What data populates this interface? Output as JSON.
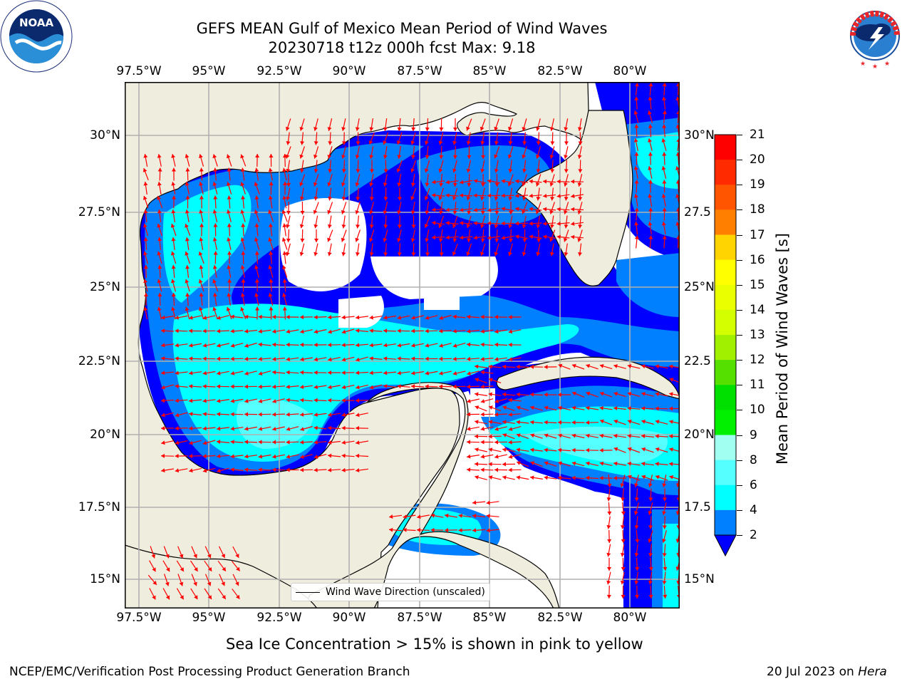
{
  "header": {
    "title_line1": "GEFS MEAN Gulf of Mexico Mean Period of Wind Waves",
    "title_line2": "20230718 t12z 000h fcst   Max: 9.18"
  },
  "logos": {
    "left": {
      "text": "NOAA",
      "ring_text": "NATIONAL OCEANIC AND ATMOSPHERIC ADMINISTRATION · U.S. DEPARTMENT OF COMMERCE"
    },
    "right": {
      "ring_text": "NATIONAL WEATHER SERVICE"
    }
  },
  "map": {
    "lon_ticks": [
      "97.5°W",
      "95°W",
      "92.5°W",
      "90°W",
      "87.5°W",
      "85°W",
      "82.5°W",
      "80°W"
    ],
    "lon_values": [
      -97.5,
      -95,
      -92.5,
      -90,
      -87.5,
      -85,
      -82.5,
      -80
    ],
    "lat_ticks_left": [
      "30°N",
      "27.5°N",
      "25°N",
      "22.5°N",
      "20°N",
      "17.5°N",
      "15°N"
    ],
    "lat_ticks_right": [
      "30°N",
      "27.5",
      "25°N",
      "22.5",
      "20°N",
      "17.5",
      "15°N"
    ],
    "lat_values": [
      30,
      27.5,
      25,
      22.5,
      20,
      17.5,
      15
    ],
    "extent": {
      "lon_min": -98,
      "lon_max": -78.2,
      "lat_min": 14,
      "lat_max": 31.6
    },
    "legend_label": "Wind Wave Direction (unscaled)",
    "colors": {
      "land": "#efedde",
      "coast": "#000000",
      "grid": "#b0b0b0",
      "arrow": "#ff0000"
    }
  },
  "colorbar": {
    "label": "Mean Period of Wind Waves [s]",
    "ticks": [
      "21",
      "20",
      "19",
      "18",
      "17",
      "16",
      "15",
      "14",
      "13",
      "12",
      "11",
      "10",
      "9",
      "8",
      "6",
      "4",
      "2"
    ],
    "colors": [
      "#ff0000",
      "#ff2a00",
      "#ff5500",
      "#ff8000",
      "#ffaa00",
      "#ffd400",
      "#ffff00",
      "#eaff00",
      "#d4ff00",
      "#a0f000",
      "#55e000",
      "#00e000",
      "#00f000",
      "#55f078",
      "#a0fff0",
      "#55ffff",
      "#00ffff",
      "#0080ff"
    ],
    "extend_color": "#0000ff"
  },
  "notes": {
    "sea_ice": "Sea Ice Concentration > 15% is shown in pink to yellow",
    "branch": "NCEP/EMC/Verification Post Processing Product Generation Branch",
    "date_prefix": "20 Jul 2023 on ",
    "machine": "Hera"
  }
}
